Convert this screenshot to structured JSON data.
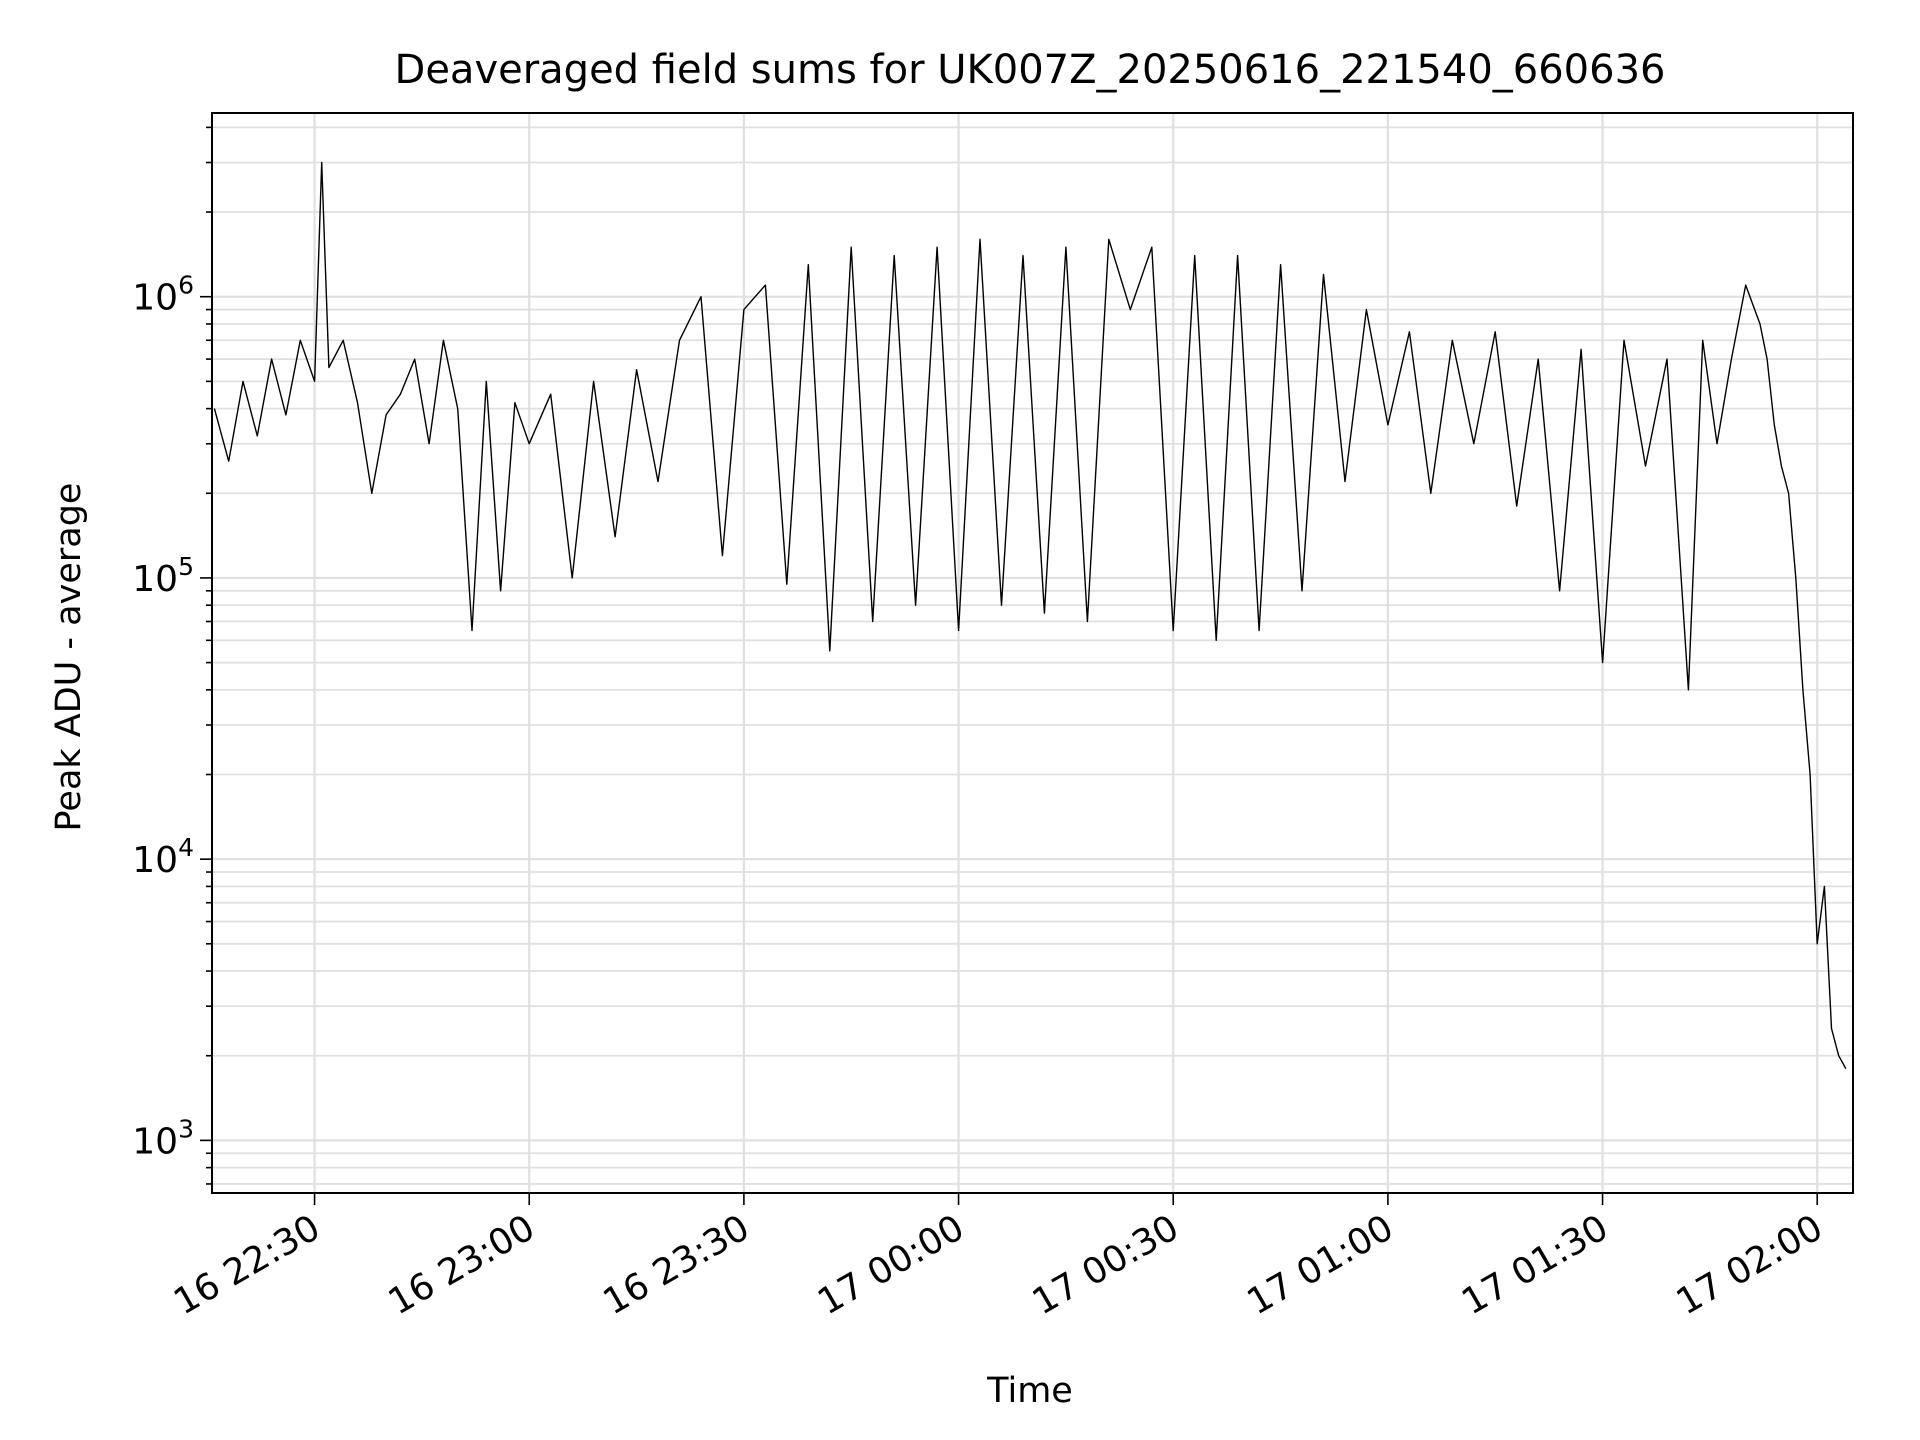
{
  "chart_data": {
    "type": "line",
    "title": "Deaveraged field sums for UK007Z_20250616_221540_660636",
    "xlabel": "Time",
    "ylabel": "Peak ADU - average",
    "y_scale": "log",
    "grid": true,
    "line_color": "#000000",
    "grid_color": "#e0e0e0",
    "xlim": [
      "2025-06-16 22:15:40",
      "2025-06-17 02:05:00"
    ],
    "ylim": [
      650,
      4500000
    ],
    "x_ticks": [
      {
        "value": "2025-06-16 22:30",
        "label": "16 22:30"
      },
      {
        "value": "2025-06-16 23:00",
        "label": "16 23:00"
      },
      {
        "value": "2025-06-16 23:30",
        "label": "16 23:30"
      },
      {
        "value": "2025-06-17 00:00",
        "label": "17 00:00"
      },
      {
        "value": "2025-06-17 00:30",
        "label": "17 00:30"
      },
      {
        "value": "2025-06-17 01:00",
        "label": "17 01:00"
      },
      {
        "value": "2025-06-17 01:30",
        "label": "17 01:30"
      },
      {
        "value": "2025-06-17 02:00",
        "label": "17 02:00"
      }
    ],
    "y_ticks": [
      {
        "value": 1000,
        "base": "10",
        "exp": "3"
      },
      {
        "value": 10000,
        "base": "10",
        "exp": "4"
      },
      {
        "value": 100000,
        "base": "10",
        "exp": "5"
      },
      {
        "value": 1000000,
        "base": "10",
        "exp": "6"
      }
    ],
    "series": [
      {
        "x": [
          "2025-06-16 22:16",
          "2025-06-16 22:18",
          "2025-06-16 22:20",
          "2025-06-16 22:22",
          "2025-06-16 22:24",
          "2025-06-16 22:26",
          "2025-06-16 22:28",
          "2025-06-16 22:30",
          "2025-06-16 22:31",
          "2025-06-16 22:32",
          "2025-06-16 22:34",
          "2025-06-16 22:36",
          "2025-06-16 22:38",
          "2025-06-16 22:40",
          "2025-06-16 22:42",
          "2025-06-16 22:44",
          "2025-06-16 22:46",
          "2025-06-16 22:48",
          "2025-06-16 22:50",
          "2025-06-16 22:52",
          "2025-06-16 22:54",
          "2025-06-16 22:56",
          "2025-06-16 22:58",
          "2025-06-16 23:00",
          "2025-06-16 23:03",
          "2025-06-16 23:06",
          "2025-06-16 23:09",
          "2025-06-16 23:12",
          "2025-06-16 23:15",
          "2025-06-16 23:18",
          "2025-06-16 23:21",
          "2025-06-16 23:24",
          "2025-06-16 23:27",
          "2025-06-16 23:30",
          "2025-06-16 23:33",
          "2025-06-16 23:36",
          "2025-06-16 23:39",
          "2025-06-16 23:42",
          "2025-06-16 23:45",
          "2025-06-16 23:48",
          "2025-06-16 23:51",
          "2025-06-16 23:54",
          "2025-06-16 23:57",
          "2025-06-17 00:00",
          "2025-06-17 00:03",
          "2025-06-17 00:06",
          "2025-06-17 00:09",
          "2025-06-17 00:12",
          "2025-06-17 00:15",
          "2025-06-17 00:18",
          "2025-06-17 00:21",
          "2025-06-17 00:24",
          "2025-06-17 00:27",
          "2025-06-17 00:30",
          "2025-06-17 00:33",
          "2025-06-17 00:36",
          "2025-06-17 00:39",
          "2025-06-17 00:42",
          "2025-06-17 00:45",
          "2025-06-17 00:48",
          "2025-06-17 00:51",
          "2025-06-17 00:54",
          "2025-06-17 00:57",
          "2025-06-17 01:00",
          "2025-06-17 01:03",
          "2025-06-17 01:06",
          "2025-06-17 01:09",
          "2025-06-17 01:12",
          "2025-06-17 01:15",
          "2025-06-17 01:18",
          "2025-06-17 01:21",
          "2025-06-17 01:24",
          "2025-06-17 01:27",
          "2025-06-17 01:30",
          "2025-06-17 01:33",
          "2025-06-17 01:36",
          "2025-06-17 01:39",
          "2025-06-17 01:42",
          "2025-06-17 01:44",
          "2025-06-17 01:46",
          "2025-06-17 01:48",
          "2025-06-17 01:50",
          "2025-06-17 01:52",
          "2025-06-17 01:53",
          "2025-06-17 01:54",
          "2025-06-17 01:55",
          "2025-06-17 01:56",
          "2025-06-17 01:57",
          "2025-06-17 01:58",
          "2025-06-17 01:59",
          "2025-06-17 02:00",
          "2025-06-17 02:01",
          "2025-06-17 02:02",
          "2025-06-17 02:03",
          "2025-06-17 02:04"
        ],
        "y": [
          400000,
          260000,
          500000,
          320000,
          600000,
          380000,
          700000,
          500000,
          3000000,
          560000,
          700000,
          420000,
          200000,
          380000,
          450000,
          600000,
          300000,
          700000,
          400000,
          65000,
          500000,
          90000,
          420000,
          300000,
          450000,
          100000,
          500000,
          140000,
          550000,
          220000,
          700000,
          1000000,
          120000,
          900000,
          1100000,
          95000,
          1300000,
          55000,
          1500000,
          70000,
          1400000,
          80000,
          1500000,
          65000,
          1600000,
          80000,
          1400000,
          75000,
          1500000,
          70000,
          1600000,
          900000,
          1500000,
          65000,
          1400000,
          60000,
          1400000,
          65000,
          1300000,
          90000,
          1200000,
          220000,
          900000,
          350000,
          750000,
          200000,
          700000,
          300000,
          750000,
          180000,
          600000,
          90000,
          650000,
          50000,
          700000,
          250000,
          600000,
          40000,
          700000,
          300000,
          600000,
          1100000,
          800000,
          600000,
          350000,
          250000,
          200000,
          100000,
          40000,
          20000,
          5000,
          8000,
          2500,
          2000,
          1800
        ],
        "marks": "line"
      }
    ]
  }
}
